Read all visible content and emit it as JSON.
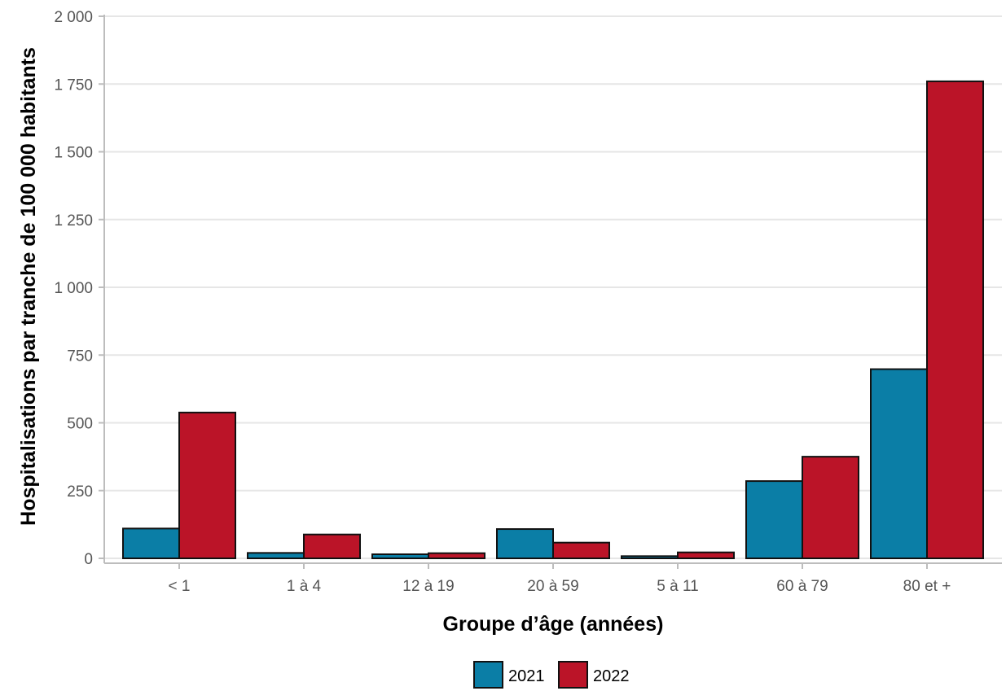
{
  "chart_data": {
    "type": "bar",
    "title": "",
    "xlabel": "Groupe d’âge (années)",
    "ylabel": "Hospitalisations par tranche de 100 000 habitants",
    "categories": [
      "< 1",
      "1 à 4",
      "12 à 19",
      "20 à 59",
      "5 à 11",
      "60 à 79",
      "80 et +"
    ],
    "series": [
      {
        "name": "2021",
        "color": "#0b7ea6",
        "values": [
          110,
          20,
          15,
          108,
          8,
          285,
          698
        ]
      },
      {
        "name": "2022",
        "color": "#bb1428",
        "values": [
          538,
          88,
          19,
          58,
          22,
          375,
          1760
        ]
      }
    ],
    "ylim": [
      0,
      2000
    ],
    "yticks": [
      0,
      250,
      500,
      750,
      1000,
      1250,
      1500,
      1750,
      2000
    ],
    "ytick_labels": [
      "0",
      "250",
      "500",
      "750",
      "1 000",
      "1 250",
      "1 500",
      "1 750",
      "2 000"
    ],
    "grid": "horizontal",
    "legend_position": "bottom"
  }
}
